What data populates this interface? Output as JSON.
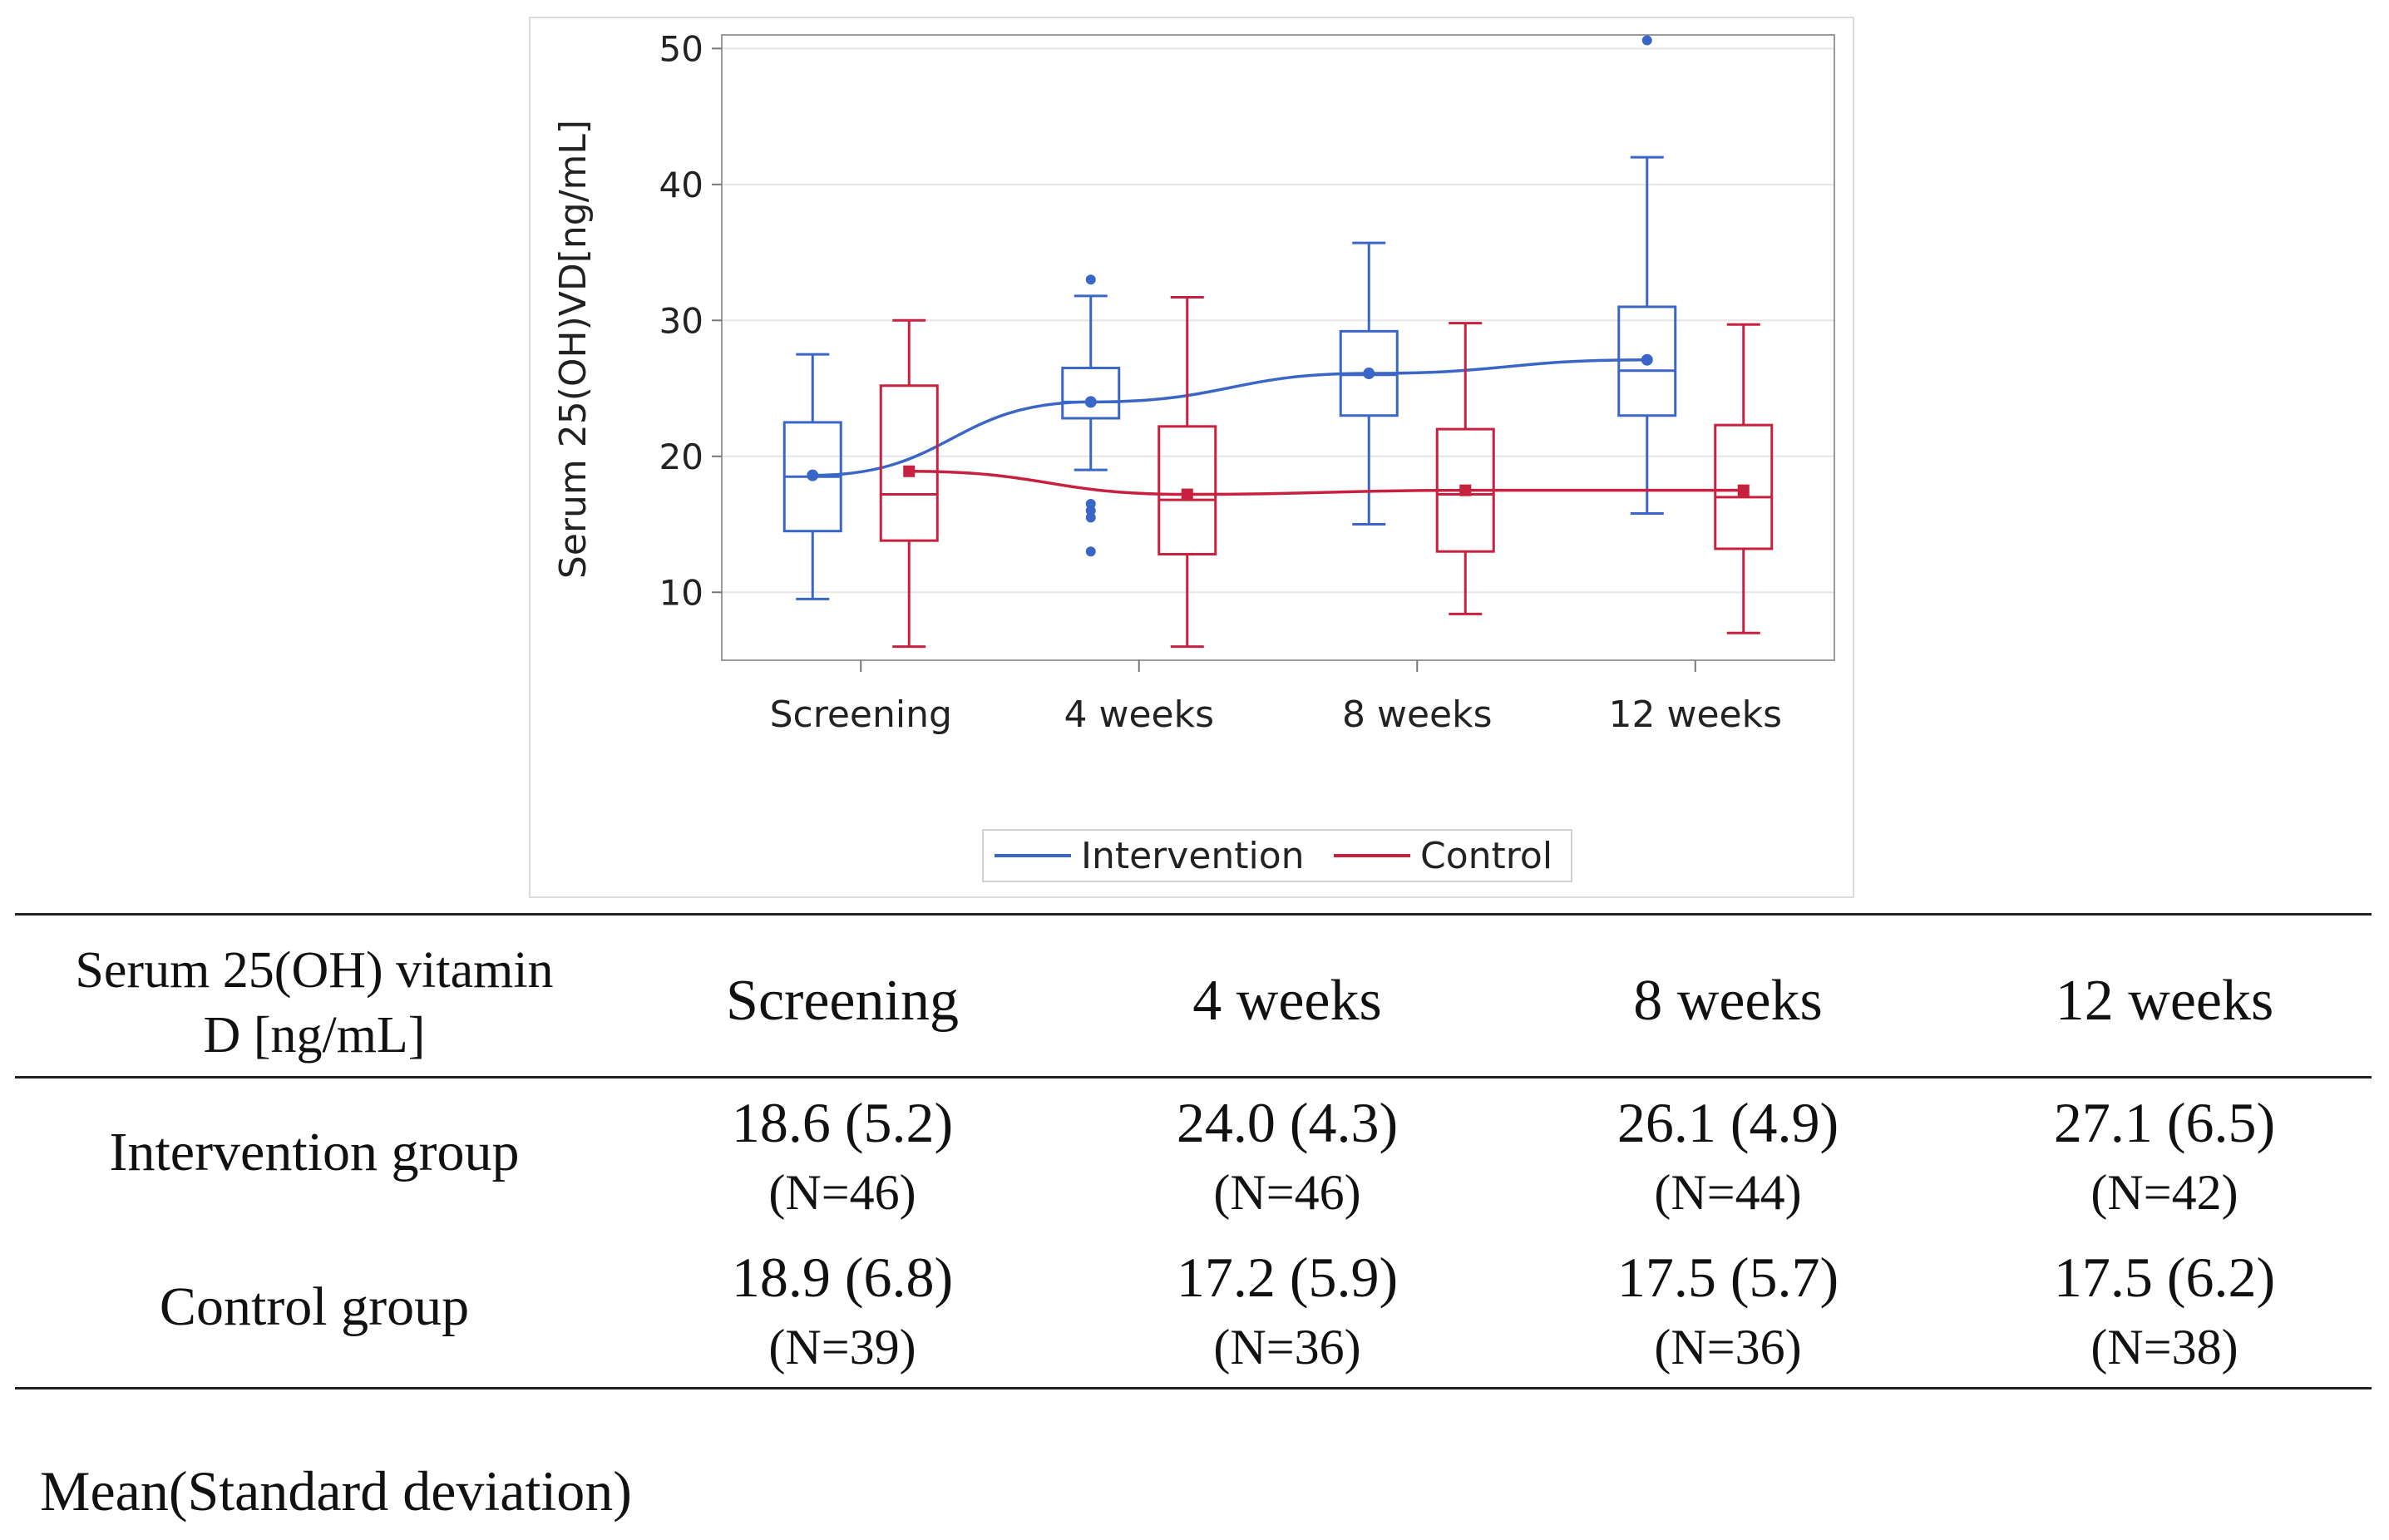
{
  "chart_data": {
    "type": "box",
    "ylabel": "Serum 25(OH)VD[ng/mL]",
    "ylim": [
      5,
      51
    ],
    "yticks": [
      10,
      20,
      30,
      40,
      50
    ],
    "categories": [
      "Screening",
      "4 weeks",
      "8 weeks",
      "12 weeks"
    ],
    "grid": true,
    "legend_position": "bottom-center",
    "series": [
      {
        "name": "Intervention",
        "color": "#3a66c8",
        "means": [
          18.6,
          24.0,
          26.1,
          27.1
        ],
        "boxes": [
          {
            "min": 9.5,
            "q1": 14.5,
            "median": 18.5,
            "q3": 22.5,
            "max": 27.5,
            "outliers": []
          },
          {
            "min": 19.0,
            "q1": 22.8,
            "median": 24.0,
            "q3": 26.5,
            "max": 31.8,
            "outliers": [
              33.0,
              16.5,
              16.0,
              15.5,
              13.0
            ]
          },
          {
            "min": 15.0,
            "q1": 23.0,
            "median": 26.0,
            "q3": 29.2,
            "max": 35.7,
            "outliers": []
          },
          {
            "min": 15.8,
            "q1": 23.0,
            "median": 26.3,
            "q3": 31.0,
            "max": 42.0,
            "outliers": [
              50.6
            ]
          }
        ]
      },
      {
        "name": "Control",
        "color": "#c8213f",
        "means": [
          18.9,
          17.2,
          17.5,
          17.5
        ],
        "boxes": [
          {
            "min": 6.0,
            "q1": 13.8,
            "median": 17.2,
            "q3": 25.2,
            "max": 30.0,
            "outliers": []
          },
          {
            "min": 6.0,
            "q1": 12.8,
            "median": 16.8,
            "q3": 22.2,
            "max": 31.7,
            "outliers": []
          },
          {
            "min": 8.4,
            "q1": 13.0,
            "median": 17.2,
            "q3": 22.0,
            "max": 29.8,
            "outliers": []
          },
          {
            "min": 7.0,
            "q1": 13.2,
            "median": 17.0,
            "q3": 22.3,
            "max": 29.7,
            "outliers": []
          }
        ]
      }
    ]
  },
  "table": {
    "header": {
      "label_line1": "Serum 25(OH) vitamin",
      "label_line2": "D [ng/mL]",
      "cols": [
        "Screening",
        "4 weeks",
        "8 weeks",
        "12 weeks"
      ]
    },
    "rows": [
      {
        "label": "Intervention group",
        "cells": [
          {
            "value": "18.6 (5.2)",
            "n": "(N=46)"
          },
          {
            "value": "24.0 (4.3)",
            "n": "(N=46)"
          },
          {
            "value": "26.1 (4.9)",
            "n": "(N=44)"
          },
          {
            "value": "27.1 (6.5)",
            "n": "(N=42)"
          }
        ]
      },
      {
        "label": "Control group",
        "cells": [
          {
            "value": "18.9 (6.8)",
            "n": "(N=39)"
          },
          {
            "value": "17.2 (5.9)",
            "n": "(N=36)"
          },
          {
            "value": "17.5 (5.7)",
            "n": "(N=36)"
          },
          {
            "value": "17.5 (6.2)",
            "n": "(N=38)"
          }
        ]
      }
    ]
  },
  "footnote": "Mean(Standard deviation)"
}
